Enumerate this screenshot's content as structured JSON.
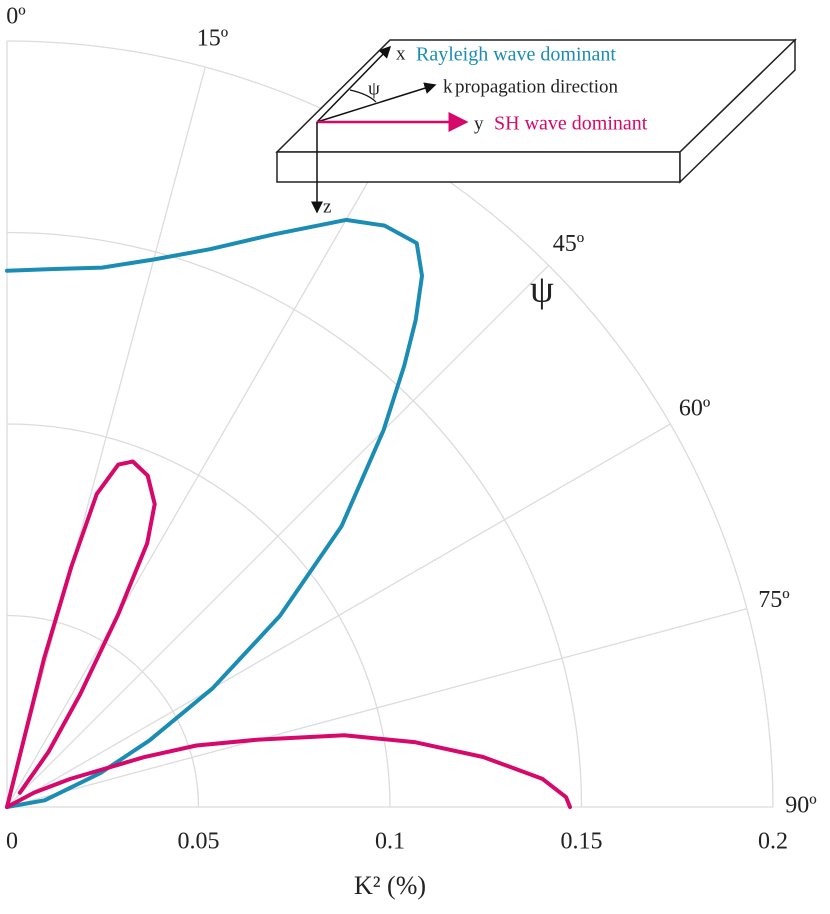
{
  "chart_data": {
    "type": "polar",
    "x_label": "K² (%)",
    "angle_label": "ψ",
    "rlim": [
      0,
      0.2
    ],
    "xticks": [
      0,
      0.05,
      0.1,
      0.15,
      0.2
    ],
    "thetalim": [
      0,
      90
    ],
    "thetaticks": [
      {
        "value": 0,
        "label": "0º"
      },
      {
        "value": 15,
        "label": "15º"
      },
      {
        "value": 30,
        "label": null
      },
      {
        "value": 45,
        "label": "45º"
      },
      {
        "value": 60,
        "label": "60º"
      },
      {
        "value": 75,
        "label": "75º"
      },
      {
        "value": 90,
        "label": "90º"
      }
    ],
    "grid": true,
    "series": [
      {
        "name": "Rayleigh wave dominant",
        "color": "#1b8db4",
        "theta": [
          0,
          5,
          10,
          15,
          20,
          25,
          30,
          33,
          36,
          38,
          40,
          42,
          45,
          50,
          55,
          60,
          65,
          70,
          80,
          90
        ],
        "values": [
          0.14,
          0.141,
          0.143,
          0.148,
          0.155,
          0.165,
          0.177,
          0.181,
          0.182,
          0.176,
          0.166,
          0.155,
          0.139,
          0.114,
          0.087,
          0.062,
          0.041,
          0.026,
          0.01,
          0
        ]
      },
      {
        "name": "SH wave dominant",
        "color": "#d6086b",
        "theta": [
          12,
          14,
          15,
          16,
          18,
          20,
          23,
          26,
          28,
          30,
          33,
          37,
          42,
          58,
          62,
          66,
          70,
          72,
          75,
          78,
          81,
          84,
          87,
          89,
          90
        ],
        "values": [
          0,
          0.04,
          0.065,
          0.085,
          0.094,
          0.096,
          0.094,
          0.088,
          0.078,
          0.058,
          0.035,
          0.018,
          0.005,
          0,
          0.008,
          0.018,
          0.038,
          0.052,
          0.068,
          0.09,
          0.108,
          0.125,
          0.14,
          0.146,
          0.147
        ],
        "pieces": [
          13,
          12
        ]
      }
    ],
    "inset": {
      "x": "x",
      "y": "y",
      "z": "z",
      "psi": "ψ",
      "k": "k",
      "k_text": "propagation direction"
    }
  }
}
